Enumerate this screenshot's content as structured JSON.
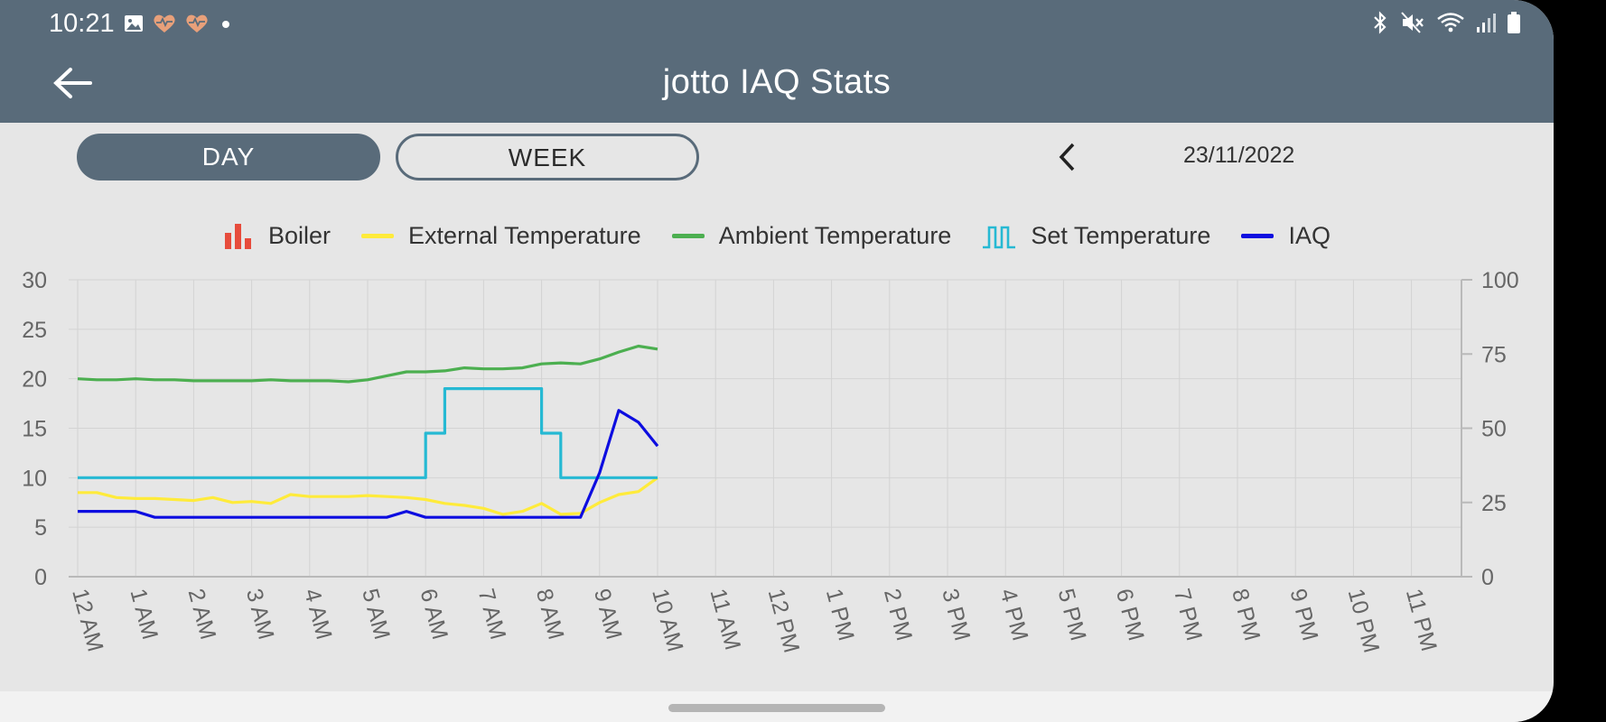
{
  "status_bar": {
    "time": "10:21",
    "left_icons": [
      "gallery-icon",
      "heart-rate-icon",
      "heart-rate-icon",
      "dot-icon"
    ],
    "right_icons": [
      "bluetooth-icon",
      "mute-icon",
      "wifi-icon",
      "signal-icon",
      "battery-icon"
    ]
  },
  "header": {
    "title": "jotto IAQ Stats",
    "back_icon": "arrow-left-icon"
  },
  "range_tabs": [
    {
      "label": "DAY",
      "selected": true
    },
    {
      "label": "WEEK",
      "selected": false
    }
  ],
  "date_nav": {
    "prev_icon": "chevron-left-icon",
    "date": "23/11/2022"
  },
  "colors": {
    "appbar": "#596b7a",
    "boiler": "#e74c3c",
    "external": "#ffeb3b",
    "ambient": "#4caf50",
    "set": "#26b9d3",
    "iaq": "#0d0de0"
  },
  "chart_data": {
    "type": "line",
    "legend": [
      {
        "name": "Boiler",
        "icon": "bar-chart-icon",
        "color": "#e74c3c"
      },
      {
        "name": "External Temperature",
        "icon": "line-icon",
        "color": "#ffeb3b"
      },
      {
        "name": "Ambient Temperature",
        "icon": "line-icon",
        "color": "#4caf50"
      },
      {
        "name": "Set Temperature",
        "icon": "step-line-icon",
        "color": "#26b9d3"
      },
      {
        "name": "IAQ",
        "icon": "line-icon",
        "color": "#0d0de0"
      }
    ],
    "legend_position": "top-center",
    "categories": [
      "12 AM",
      "1 AM",
      "2 AM",
      "3 AM",
      "4 AM",
      "5 AM",
      "6 AM",
      "7 AM",
      "8 AM",
      "9 AM",
      "10 AM",
      "11 AM",
      "12 PM",
      "1 PM",
      "2 PM",
      "3 PM",
      "4 PM",
      "5 PM",
      "6 PM",
      "7 PM",
      "8 PM",
      "9 PM",
      "10 PM",
      "11 PM"
    ],
    "y_left": {
      "ticks": [
        0,
        5,
        10,
        15,
        20,
        25,
        30
      ],
      "range": [
        0,
        30
      ]
    },
    "y_right": {
      "ticks": [
        0,
        25,
        50,
        75,
        100
      ],
      "range": [
        0,
        100
      ]
    },
    "grid": true,
    "series": [
      {
        "name": "Ambient Temperature",
        "axis": "left",
        "color": "#4caf50",
        "step": false,
        "x": [
          0,
          0.33,
          0.67,
          1,
          1.33,
          1.67,
          2,
          2.33,
          2.67,
          3,
          3.33,
          3.67,
          4,
          4.33,
          4.67,
          5,
          5.33,
          5.67,
          6,
          6.33,
          6.67,
          7,
          7.33,
          7.67,
          8,
          8.33,
          8.67,
          9,
          9.33,
          9.67,
          10
        ],
        "y": [
          20,
          19.9,
          19.9,
          20,
          19.9,
          19.9,
          19.8,
          19.8,
          19.8,
          19.8,
          19.9,
          19.8,
          19.8,
          19.8,
          19.7,
          19.9,
          20.3,
          20.7,
          20.7,
          20.8,
          21.1,
          21,
          21,
          21.1,
          21.5,
          21.6,
          21.5,
          22,
          22.7,
          23.3,
          23
        ]
      },
      {
        "name": "External Temperature",
        "axis": "left",
        "color": "#ffeb3b",
        "step": false,
        "x": [
          0,
          0.33,
          0.67,
          1,
          1.33,
          1.67,
          2,
          2.33,
          2.67,
          3,
          3.33,
          3.67,
          4,
          4.33,
          4.67,
          5,
          5.33,
          5.67,
          6,
          6.33,
          6.67,
          7,
          7.33,
          7.67,
          8,
          8.33,
          8.67,
          9,
          9.33,
          9.67,
          10
        ],
        "y": [
          8.5,
          8.5,
          8,
          7.9,
          7.9,
          7.8,
          7.7,
          8,
          7.5,
          7.6,
          7.4,
          8.3,
          8.1,
          8.1,
          8.1,
          8.2,
          8.1,
          8,
          7.8,
          7.4,
          7.2,
          6.9,
          6.3,
          6.6,
          7.4,
          6.3,
          6.4,
          7.5,
          8.3,
          8.6,
          10
        ]
      },
      {
        "name": "Set Temperature",
        "axis": "left",
        "color": "#26b9d3",
        "step": true,
        "x": [
          0,
          6,
          6,
          6.33,
          6.33,
          8,
          8,
          8.33,
          8.33,
          10
        ],
        "y": [
          10,
          10,
          14.5,
          14.5,
          19,
          19,
          14.5,
          14.5,
          10,
          10
        ]
      },
      {
        "name": "IAQ",
        "axis": "right",
        "color": "#0d0de0",
        "step": false,
        "x": [
          0,
          0.5,
          1,
          1.33,
          2,
          3,
          4,
          5,
          5.33,
          5.67,
          6,
          6.5,
          7,
          7.5,
          8,
          8.5,
          8.67,
          9,
          9.33,
          9.67,
          10
        ],
        "y": [
          22,
          22,
          22,
          20,
          20,
          20,
          20,
          20,
          20,
          22,
          20,
          20,
          20,
          20,
          20,
          20,
          20,
          35,
          56,
          52,
          44
        ]
      }
    ]
  }
}
